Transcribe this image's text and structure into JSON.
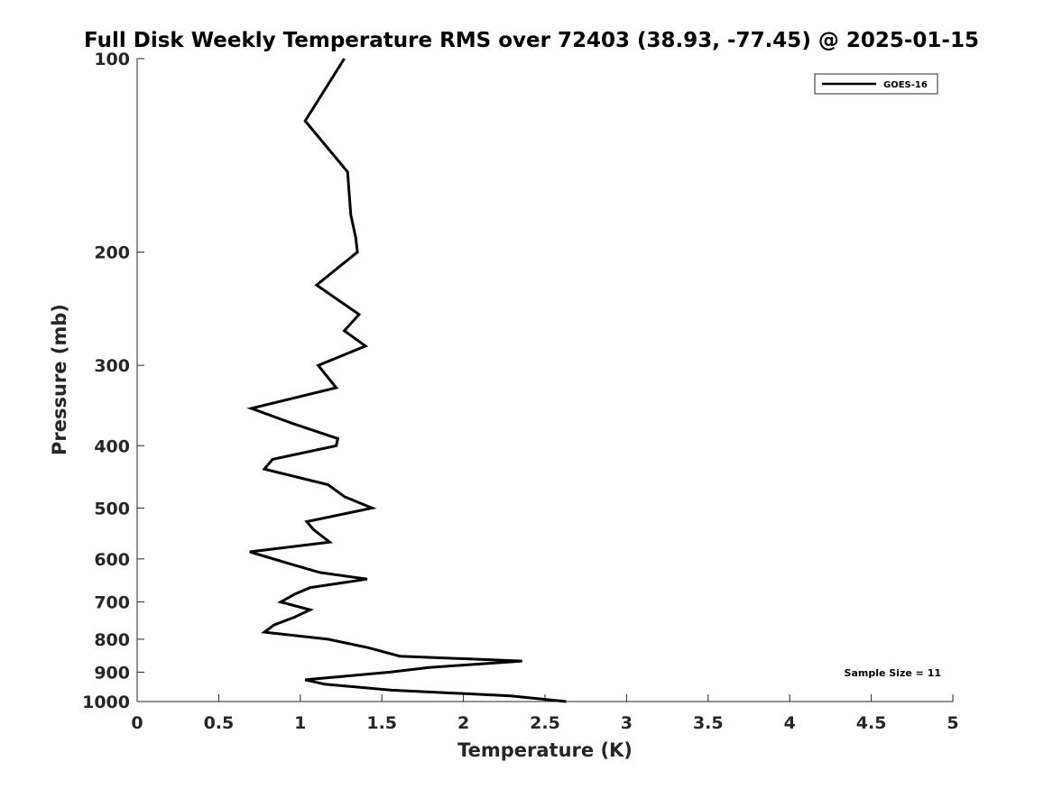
{
  "chart_data": {
    "type": "line",
    "title": "Full Disk Weekly Temperature RMS over 72403 (38.93, -77.45) @ 2025-01-15",
    "xlabel": "Temperature (K)",
    "ylabel": "Pressure (mb)",
    "xlim": [
      0,
      5
    ],
    "ylim": [
      100,
      1000
    ],
    "y_scale": "log",
    "y_reversed": true,
    "x_ticks": [
      "0",
      "0.5",
      "1",
      "1.5",
      "2",
      "2.5",
      "3",
      "3.5",
      "4",
      "4.5",
      "5"
    ],
    "y_ticks": [
      "100",
      "200",
      "300",
      "400",
      "500",
      "600",
      "700",
      "800",
      "900",
      "1000"
    ],
    "grid": false,
    "legend_position": "top-right",
    "series": [
      {
        "name": "GOES-16",
        "color": "#000000",
        "points": [
          [
            1.27,
            100
          ],
          [
            1.03,
            125
          ],
          [
            1.29,
            150
          ],
          [
            1.31,
            175
          ],
          [
            1.34,
            190
          ],
          [
            1.35,
            200
          ],
          [
            1.1,
            225
          ],
          [
            1.36,
            250
          ],
          [
            1.27,
            265
          ],
          [
            1.4,
            280
          ],
          [
            1.11,
            300
          ],
          [
            1.22,
            325
          ],
          [
            0.7,
            350
          ],
          [
            0.96,
            370
          ],
          [
            1.23,
            390
          ],
          [
            1.22,
            400
          ],
          [
            0.83,
            420
          ],
          [
            0.78,
            435
          ],
          [
            1.17,
            460
          ],
          [
            1.27,
            480
          ],
          [
            1.44,
            500
          ],
          [
            1.04,
            525
          ],
          [
            1.08,
            540
          ],
          [
            1.18,
            565
          ],
          [
            0.69,
            585
          ],
          [
            0.93,
            610
          ],
          [
            1.12,
            630
          ],
          [
            1.41,
            645
          ],
          [
            1.06,
            665
          ],
          [
            0.97,
            680
          ],
          [
            0.88,
            700
          ],
          [
            1.06,
            720
          ],
          [
            0.96,
            740
          ],
          [
            0.84,
            760
          ],
          [
            0.78,
            780
          ],
          [
            1.17,
            800
          ],
          [
            1.42,
            825
          ],
          [
            1.61,
            850
          ],
          [
            2.36,
            865
          ],
          [
            1.79,
            885
          ],
          [
            1.55,
            900
          ],
          [
            1.03,
            925
          ],
          [
            1.15,
            940
          ],
          [
            1.56,
            960
          ],
          [
            2.29,
            980
          ],
          [
            2.63,
            1000
          ]
        ]
      }
    ],
    "annotations": [
      "Sample Size = 11"
    ]
  }
}
